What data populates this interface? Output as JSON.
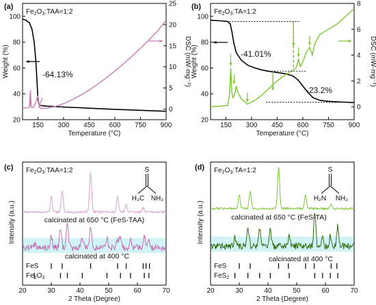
{
  "colors": {
    "weight": "#000000",
    "dsc_a": "#c47cb4",
    "dsc_b": "#7cc630",
    "xrd_c_650": "#d7a0cf",
    "xrd_c_400": "#c073b4",
    "xrd_c_band": "#bfeef2",
    "xrd_d_650": "#7ec63a",
    "xrd_d_400": "#2d6b0e",
    "xrd_d_band": "#bfeef2",
    "dashed_b": "#6ec21c"
  },
  "chart_data": [
    {
      "panel": "(a)",
      "type": "line",
      "sample": "Fe2O3:TAA=1:2",
      "sample_main": "Fe",
      "sample_sub": "2",
      "sample_rest": "O",
      "sample_sub2": "3",
      "sample_tail": ":TAA=1:2",
      "xlabel": "Temperature (°C)",
      "ylabel_left": "Weight (%)",
      "ylabel_right": "DSC (mW·mg⁻¹)",
      "xlim": [
        60,
        900
      ],
      "ylim_left": [
        20,
        110
      ],
      "ylim_right": [
        -2.5,
        25
      ],
      "xticks": [
        "150",
        "300",
        "450",
        "600",
        "750",
        "900"
      ],
      "xtick_values": [
        150,
        300,
        450,
        600,
        750,
        900
      ],
      "yticks_left": [
        "20",
        "40",
        "60",
        "80",
        "100"
      ],
      "ytick_values_left": [
        20,
        40,
        60,
        80,
        100
      ],
      "yticks_right": [
        "0",
        "5",
        "10",
        "15",
        "20",
        "25"
      ],
      "ytick_values_right": [
        0,
        5,
        10,
        15,
        20,
        25
      ],
      "annotation": "-64.13%",
      "weight_series": {
        "x": [
          60,
          80,
          100,
          115,
          128,
          138,
          145,
          150,
          154,
          158,
          165,
          200,
          300,
          400,
          500,
          600,
          700,
          800,
          900
        ],
        "y": [
          98,
          97,
          95,
          90,
          80,
          65,
          48,
          36,
          33,
          31.5,
          31,
          30.5,
          29.8,
          29.2,
          28.6,
          28.0,
          27.5,
          27.0,
          26.5
        ]
      },
      "dsc_series": {
        "x": [
          60,
          90,
          100,
          106,
          110,
          116,
          125,
          140,
          150,
          158,
          166,
          200,
          250,
          300,
          350,
          400,
          450,
          500,
          550,
          600,
          650,
          700,
          750,
          800,
          850,
          900
        ],
        "y": [
          0.3,
          0.3,
          0.5,
          4.5,
          0.6,
          0.3,
          0.5,
          2.0,
          3.2,
          0.5,
          0.2,
          0.2,
          0.6,
          1.3,
          2.2,
          3.3,
          4.5,
          5.9,
          7.4,
          9.0,
          10.7,
          12.5,
          14.4,
          16.4,
          18.5,
          21.0
        ]
      }
    },
    {
      "panel": "(b)",
      "type": "line",
      "sample_main": "Fe",
      "sample_sub": "2",
      "sample_rest": "O",
      "sample_sub2": "3",
      "sample_tail": ":TA=1:2",
      "xlabel": "Temperature (°C)",
      "ylabel_left": "Weight (%)",
      "ylabel_right": "DSC (mW·mg⁻¹)",
      "xlim": [
        60,
        900
      ],
      "ylim_left": [
        20,
        110
      ],
      "ylim_right": [
        -1,
        8
      ],
      "xticks": [
        "150",
        "300",
        "450",
        "600",
        "750",
        "900"
      ],
      "xtick_values": [
        150,
        300,
        450,
        600,
        750,
        900
      ],
      "yticks_left": [
        "20",
        "40",
        "60",
        "80",
        "100"
      ],
      "ytick_values_left": [
        20,
        40,
        60,
        80,
        100
      ],
      "yticks_right": [
        "0",
        "2",
        "4",
        "6",
        "8"
      ],
      "ytick_values_right": [
        0,
        2,
        4,
        6,
        8
      ],
      "annotation_1": "-41.01%",
      "annotation_2": "-23.2%",
      "weight_series": {
        "x": [
          60,
          120,
          160,
          175,
          185,
          195,
          210,
          240,
          280,
          320,
          360,
          400,
          450,
          500,
          540,
          570,
          600,
          630,
          660,
          700,
          750,
          800,
          850,
          900
        ],
        "y": [
          97,
          96.5,
          96,
          94,
          88,
          80,
          72,
          66,
          62,
          60,
          58.5,
          57.5,
          56.5,
          55.5,
          54,
          51,
          46,
          41,
          37,
          35,
          34.2,
          33.8,
          33.5,
          33.3
        ]
      },
      "dsc_series": {
        "x": [
          60,
          120,
          160,
          170,
          178,
          184,
          190,
          200,
          210,
          220,
          240,
          260,
          275,
          290,
          320,
          360,
          400,
          450,
          500,
          540,
          560,
          575,
          585,
          600,
          620,
          640,
          655,
          670,
          700,
          750,
          800,
          850,
          900
        ],
        "y": [
          0,
          0.05,
          0.1,
          0.8,
          3.0,
          1.2,
          0.7,
          0.9,
          1.6,
          1.1,
          0.6,
          0.4,
          0.2,
          0.3,
          0.5,
          0.9,
          1.4,
          2.0,
          2.5,
          2.8,
          3.0,
          3.7,
          3.1,
          3.5,
          4.2,
          4.6,
          4.0,
          4.9,
          5.6,
          6.0,
          6.4,
          7.0,
          7.6
        ]
      },
      "dashed_levels": {
        "top_weight": 96,
        "bottom_weight": 33.5,
        "mid_weight": 57.5,
        "drop1_temp": 545,
        "drop2_temp": 425
      }
    },
    {
      "panel": "(c)",
      "type": "line",
      "sample_main": "Fe",
      "sample_sub": "2",
      "sample_rest": "O",
      "sample_sub2": "3",
      "sample_tail": ":TAA=1:2",
      "molecule_top": "S",
      "molecule_left": "H₃C",
      "molecule_right": "NH₂",
      "xlabel": "2 Theta (Degree)",
      "ylabel": "Intensity (a.u.)",
      "xlim": [
        20,
        70
      ],
      "xticks": [
        "20",
        "30",
        "40",
        "50",
        "60",
        "70"
      ],
      "xtick_values": [
        20,
        30,
        40,
        50,
        60,
        70
      ],
      "series_650_label": "calcinated at 650 °C (FeS-TAA)",
      "series_400_label": "calcinated at 400 °C",
      "ref1_label": "FeS",
      "ref2_main": "Fe",
      "ref2_sub": "2",
      "ref2_rest": "O",
      "ref2_sub2": "3",
      "peaks_650": [
        [
          30.0,
          22
        ],
        [
          33.8,
          30
        ],
        [
          43.7,
          58
        ],
        [
          53.1,
          22
        ],
        [
          56.1,
          10
        ],
        [
          62.0,
          6
        ]
      ],
      "peaks_400": [
        [
          24.1,
          6
        ],
        [
          30.0,
          18
        ],
        [
          33.2,
          28
        ],
        [
          35.6,
          40
        ],
        [
          40.8,
          14
        ],
        [
          43.7,
          30
        ],
        [
          49.4,
          14
        ],
        [
          53.1,
          14
        ],
        [
          54.1,
          18
        ],
        [
          57.6,
          12
        ],
        [
          62.4,
          18
        ],
        [
          64.0,
          12
        ]
      ],
      "ref_fes": [
        30.0,
        33.8,
        43.7,
        53.1,
        56.1,
        62.0,
        63.0,
        64.2
      ],
      "ref_fe2o3": [
        24.1,
        33.2,
        35.6,
        40.8,
        49.4,
        54.1,
        57.6,
        62.4,
        64.0
      ]
    },
    {
      "panel": "(d)",
      "type": "line",
      "sample_main": "Fe",
      "sample_sub": "2",
      "sample_rest": "O",
      "sample_sub2": "3",
      "sample_tail": ":TA=1:2",
      "molecule_top": "S",
      "molecule_left": "H₂N",
      "molecule_right": "NH₂",
      "xlabel": "2 Theta (Degree)",
      "ylabel": "Intensity (a.u.)",
      "xlim": [
        20,
        70
      ],
      "xticks": [
        "20",
        "30",
        "40",
        "50",
        "60",
        "70"
      ],
      "xtick_values": [
        20,
        30,
        40,
        50,
        60,
        70
      ],
      "series_650_label": "calcinated at 650 °C (FeS-TA)",
      "series_400_label": "calcinated at 400 °C",
      "ref1_label": "FeS",
      "ref2_main": "FeS",
      "ref2_sub": "2",
      "peaks_650": [
        [
          30.0,
          20
        ],
        [
          33.8,
          26
        ],
        [
          43.7,
          62
        ],
        [
          53.1,
          20
        ],
        [
          62.0,
          6
        ]
      ],
      "peaks_400": [
        [
          28.5,
          14
        ],
        [
          33.0,
          30
        ],
        [
          37.1,
          26
        ],
        [
          40.8,
          24
        ],
        [
          47.4,
          16
        ],
        [
          56.3,
          48
        ],
        [
          59.0,
          12
        ],
        [
          61.7,
          14
        ],
        [
          64.3,
          30
        ]
      ],
      "ref_fes": [
        30.0,
        33.8,
        43.7,
        47.1,
        53.1,
        56.1,
        62.0,
        64.0
      ],
      "ref_fes2": [
        28.5,
        33.0,
        37.1,
        40.8,
        47.4,
        56.3,
        59.0,
        61.7,
        64.3
      ]
    }
  ]
}
